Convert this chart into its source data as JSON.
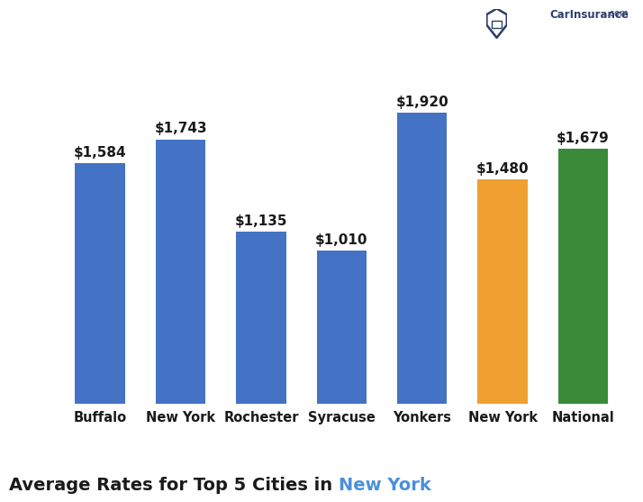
{
  "categories": [
    "Buffalo",
    "New York",
    "Rochester",
    "Syracuse",
    "Yonkers",
    "New York",
    "National"
  ],
  "values": [
    1584,
    1743,
    1135,
    1010,
    1920,
    1480,
    1679
  ],
  "bar_colors": [
    "#4472C4",
    "#4472C4",
    "#4472C4",
    "#4472C4",
    "#4472C4",
    "#F0A030",
    "#3A8A3A"
  ],
  "value_labels": [
    "$1,584",
    "$1,743",
    "$1,135",
    "$1,010",
    "$1,920",
    "$1,480",
    "$1,679"
  ],
  "title_part1": "Average Rates for Top 5 Cities in ",
  "title_part2": "New York",
  "title_color1": "#1a1a1a",
  "title_color2": "#4A90D9",
  "title_fontsize": 14,
  "label_fontsize": 11,
  "tick_fontsize": 10.5,
  "background_color": "#FFFFFF",
  "ylim": [
    0,
    2250
  ],
  "bar_width": 0.62,
  "logo_color": "#2C3E6B"
}
